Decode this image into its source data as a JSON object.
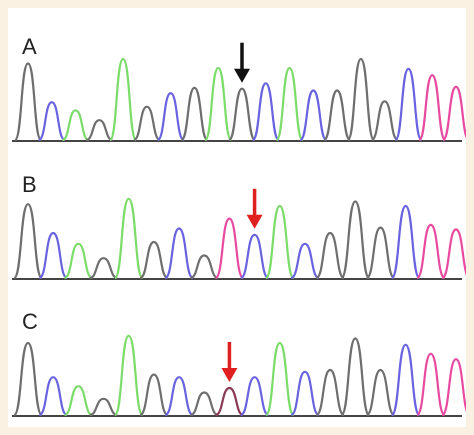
{
  "figure": {
    "panels": [
      {
        "label": "A",
        "arrow_color": "#111111",
        "arrow_peak_index": 9,
        "peaks": [
          {
            "color": "#6e6e6e",
            "height": 0.85
          },
          {
            "color": "#6a63e0",
            "height": 0.42
          },
          {
            "color": "#7cdc6a",
            "height": 0.33
          },
          {
            "color": "#6e6e6e",
            "height": 0.22
          },
          {
            "color": "#7cdc6a",
            "height": 0.9
          },
          {
            "color": "#6e6e6e",
            "height": 0.37
          },
          {
            "color": "#6a63e0",
            "height": 0.52
          },
          {
            "color": "#6e6e6e",
            "height": 0.58
          },
          {
            "color": "#7cdc6a",
            "height": 0.8
          },
          {
            "color": "#6e6e6e",
            "height": 0.57
          },
          {
            "color": "#6a63e0",
            "height": 0.63
          },
          {
            "color": "#7cdc6a",
            "height": 0.8
          },
          {
            "color": "#6a63e0",
            "height": 0.55
          },
          {
            "color": "#6e6e6e",
            "height": 0.55
          },
          {
            "color": "#6e6e6e",
            "height": 0.9
          },
          {
            "color": "#6e6e6e",
            "height": 0.43
          },
          {
            "color": "#6a63e0",
            "height": 0.79
          },
          {
            "color": "#e84aa0",
            "height": 0.72
          },
          {
            "color": "#e84aa0",
            "height": 0.59
          }
        ]
      },
      {
        "label": "B",
        "arrow_color": "#e02020",
        "arrow_peak_index": 9,
        "peaks": [
          {
            "color": "#6e6e6e",
            "height": 0.82
          },
          {
            "color": "#6a63e0",
            "height": 0.5
          },
          {
            "color": "#7cdc6a",
            "height": 0.38
          },
          {
            "color": "#6e6e6e",
            "height": 0.22
          },
          {
            "color": "#7cdc6a",
            "height": 0.88
          },
          {
            "color": "#6e6e6e",
            "height": 0.4
          },
          {
            "color": "#6a63e0",
            "height": 0.55
          },
          {
            "color": "#6e6e6e",
            "height": 0.25
          },
          {
            "color": "#e84aa0",
            "height": 0.66
          },
          {
            "color": "#6a63e0",
            "height": 0.48
          },
          {
            "color": "#7cdc6a",
            "height": 0.8
          },
          {
            "color": "#6a63e0",
            "height": 0.38
          },
          {
            "color": "#6e6e6e",
            "height": 0.5
          },
          {
            "color": "#6e6e6e",
            "height": 0.85
          },
          {
            "color": "#6e6e6e",
            "height": 0.56
          },
          {
            "color": "#6a63e0",
            "height": 0.8
          },
          {
            "color": "#e84aa0",
            "height": 0.59
          },
          {
            "color": "#e84aa0",
            "height": 0.54
          }
        ]
      },
      {
        "label": "C",
        "arrow_color": "#e02020",
        "arrow_peak_index": 8,
        "peaks": [
          {
            "color": "#6e6e6e",
            "height": 0.8
          },
          {
            "color": "#6a63e0",
            "height": 0.42
          },
          {
            "color": "#7cdc6a",
            "height": 0.32
          },
          {
            "color": "#6e6e6e",
            "height": 0.18
          },
          {
            "color": "#7cdc6a",
            "height": 0.88
          },
          {
            "color": "#6e6e6e",
            "height": 0.45
          },
          {
            "color": "#6a63e0",
            "height": 0.42
          },
          {
            "color": "#6e6e6e",
            "height": 0.25
          },
          {
            "color": "#8a3a55",
            "height": 0.3
          },
          {
            "color": "#6a63e0",
            "height": 0.42
          },
          {
            "color": "#7cdc6a",
            "height": 0.8
          },
          {
            "color": "#6a63e0",
            "height": 0.48
          },
          {
            "color": "#6e6e6e",
            "height": 0.5
          },
          {
            "color": "#6e6e6e",
            "height": 0.85
          },
          {
            "color": "#6e6e6e",
            "height": 0.5
          },
          {
            "color": "#6a63e0",
            "height": 0.78
          },
          {
            "color": "#e84aa0",
            "height": 0.68
          },
          {
            "color": "#e84aa0",
            "height": 0.62
          }
        ]
      }
    ]
  }
}
